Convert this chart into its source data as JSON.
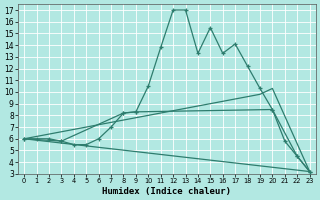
{
  "title": "",
  "xlabel": "Humidex (Indice chaleur)",
  "background_color": "#b2e8e2",
  "grid_color": "#ffffff",
  "line_color": "#2e7d6e",
  "xlim": [
    -0.5,
    23.5
  ],
  "ylim": [
    3,
    17.5
  ],
  "xticks": [
    0,
    1,
    2,
    3,
    4,
    5,
    6,
    7,
    8,
    9,
    10,
    11,
    12,
    13,
    14,
    15,
    16,
    17,
    18,
    19,
    20,
    21,
    22,
    23
  ],
  "yticks": [
    3,
    4,
    5,
    6,
    7,
    8,
    9,
    10,
    11,
    12,
    13,
    14,
    15,
    16,
    17
  ],
  "series1_x": [
    0,
    1,
    2,
    3,
    4,
    5,
    6,
    7,
    8,
    9,
    10,
    11,
    12,
    13,
    14,
    15,
    16,
    17,
    18,
    19,
    20,
    21,
    22,
    23
  ],
  "series1_y": [
    6.0,
    6.0,
    6.0,
    5.8,
    5.5,
    5.5,
    6.0,
    7.0,
    8.2,
    8.3,
    10.5,
    13.8,
    17.0,
    17.0,
    13.3,
    15.5,
    13.3,
    14.1,
    12.2,
    10.3,
    8.5,
    5.8,
    4.5,
    3.2
  ],
  "series2_x": [
    0,
    3,
    8,
    9,
    20,
    22,
    23
  ],
  "series2_y": [
    6.0,
    5.8,
    8.2,
    8.3,
    8.5,
    4.5,
    3.2
  ],
  "series3_x": [
    0,
    19,
    20,
    23
  ],
  "series3_y": [
    6.0,
    9.8,
    10.3,
    3.2
  ],
  "series4_x": [
    0,
    23
  ],
  "series4_y": [
    6.0,
    3.2
  ]
}
